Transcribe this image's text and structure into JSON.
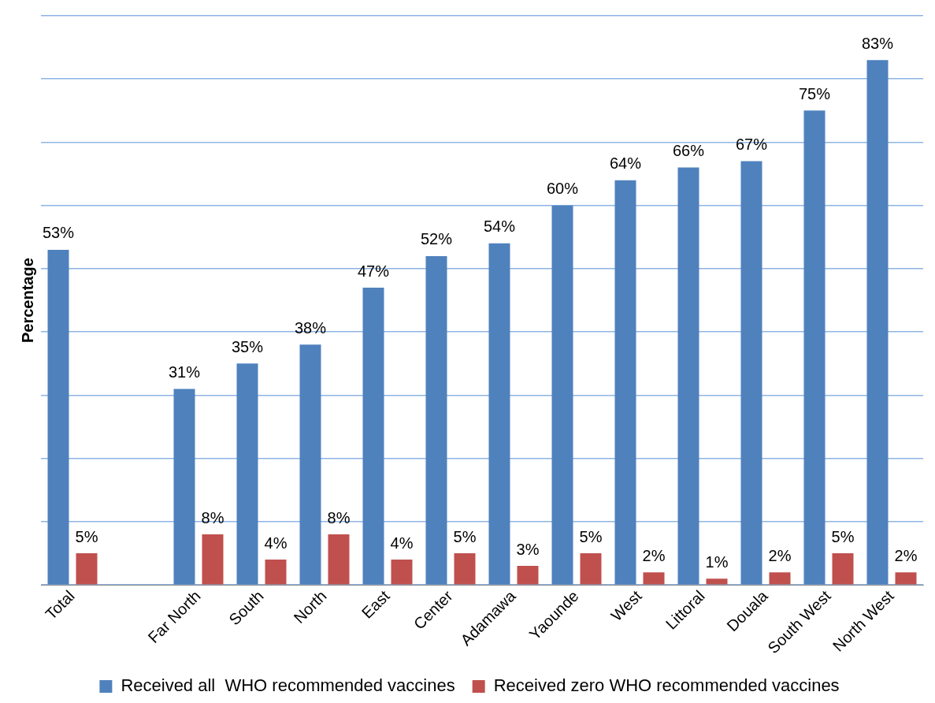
{
  "chart_data": {
    "type": "bar",
    "ylabel": "Percentage",
    "categories": [
      "Total",
      null,
      "Far North",
      "South",
      "North",
      "East",
      "Center",
      "Adamawa",
      "Yaounde",
      "West",
      "Littoral",
      "Douala",
      "South West",
      "North West"
    ],
    "series": [
      {
        "name": "Received all  WHO recommended vaccines",
        "color": "#4f81bd",
        "values": [
          53,
          null,
          31,
          35,
          38,
          47,
          52,
          54,
          60,
          64,
          66,
          67,
          75,
          83
        ],
        "value_labels": [
          "53%",
          null,
          "31%",
          "35%",
          "38%",
          "47%",
          "52%",
          "54%",
          "60%",
          "64%",
          "66%",
          "67%",
          "75%",
          "83%"
        ]
      },
      {
        "name": "Received zero WHO recommended vaccines",
        "color": "#c0504d",
        "values": [
          5,
          null,
          8,
          4,
          8,
          4,
          5,
          3,
          5,
          2,
          1,
          2,
          5,
          2
        ],
        "value_labels": [
          "5%",
          null,
          "8%",
          "4%",
          "8%",
          "4%",
          "5%",
          "3%",
          "5%",
          "2%",
          "1%",
          "2%",
          "5%",
          "2%"
        ]
      }
    ],
    "ylim": [
      0,
      90
    ],
    "yticks": [
      {
        "value": 0,
        "label": null
      },
      {
        "value": 10,
        "label": null
      },
      {
        "value": 20,
        "label": null
      },
      {
        "value": 30,
        "label": null
      },
      {
        "value": 40,
        "label": null
      },
      {
        "value": 50,
        "label": null
      },
      {
        "value": 60,
        "label": null
      },
      {
        "value": 70,
        "label": null
      },
      {
        "value": 80,
        "label": null
      },
      {
        "value": 90,
        "label": null
      }
    ],
    "tick_labels": "x",
    "grid": "y",
    "legend": "bottom"
  }
}
